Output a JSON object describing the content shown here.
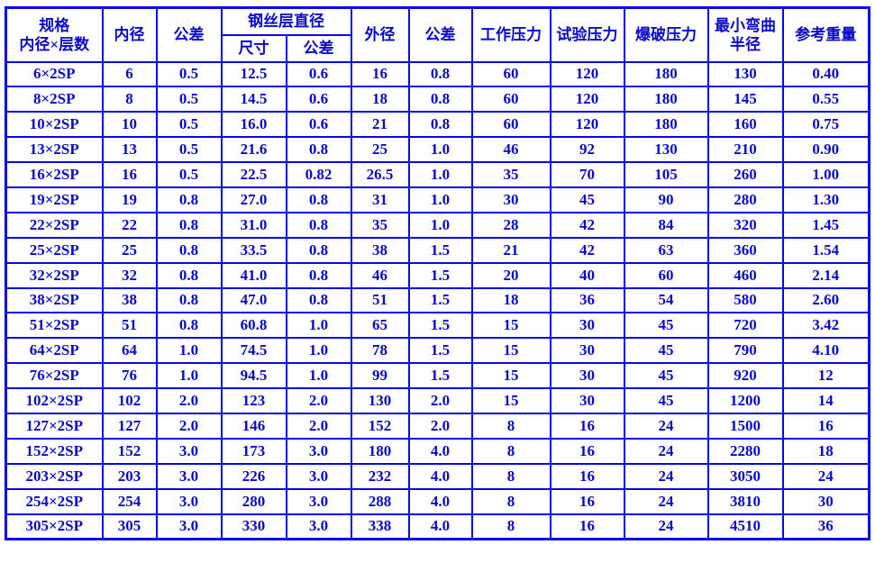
{
  "colors": {
    "text": "#0909cc",
    "border": "#0808ee",
    "background": "#ffffff"
  },
  "table": {
    "headers": {
      "spec_line1": "规格",
      "spec_line2": "内径×层数",
      "inner_diameter": "内径",
      "inner_tolerance": "公差",
      "wire_layer_diameter": "钢丝层直径",
      "wire_size": "尺寸",
      "wire_tolerance": "公差",
      "outer_diameter": "外径",
      "outer_tolerance": "公差",
      "working_pressure": "工作压力",
      "test_pressure": "试验压力",
      "burst_pressure": "爆破压力",
      "min_bend_line1": "最小弯曲",
      "min_bend_line2": "半径",
      "reference_weight": "参考重量"
    },
    "rows": [
      [
        "6×2SP",
        "6",
        "0.5",
        "12.5",
        "0.6",
        "16",
        "0.8",
        "60",
        "120",
        "180",
        "130",
        "0.40"
      ],
      [
        "8×2SP",
        "8",
        "0.5",
        "14.5",
        "0.6",
        "18",
        "0.8",
        "60",
        "120",
        "180",
        "145",
        "0.55"
      ],
      [
        "10×2SP",
        "10",
        "0.5",
        "16.0",
        "0.6",
        "21",
        "0.8",
        "60",
        "120",
        "180",
        "160",
        "0.75"
      ],
      [
        "13×2SP",
        "13",
        "0.5",
        "21.6",
        "0.8",
        "25",
        "1.0",
        "46",
        "92",
        "130",
        "210",
        "0.90"
      ],
      [
        "16×2SP",
        "16",
        "0.5",
        "22.5",
        "0.82",
        "26.5",
        "1.0",
        "35",
        "70",
        "105",
        "260",
        "1.00"
      ],
      [
        "19×2SP",
        "19",
        "0.8",
        "27.0",
        "0.8",
        "31",
        "1.0",
        "30",
        "45",
        "90",
        "280",
        "1.30"
      ],
      [
        "22×2SP",
        "22",
        "0.8",
        "31.0",
        "0.8",
        "35",
        "1.0",
        "28",
        "42",
        "84",
        "320",
        "1.45"
      ],
      [
        "25×2SP",
        "25",
        "0.8",
        "33.5",
        "0.8",
        "38",
        "1.5",
        "21",
        "42",
        "63",
        "360",
        "1.54"
      ],
      [
        "32×2SP",
        "32",
        "0.8",
        "41.0",
        "0.8",
        "46",
        "1.5",
        "20",
        "40",
        "60",
        "460",
        "2.14"
      ],
      [
        "38×2SP",
        "38",
        "0.8",
        "47.0",
        "0.8",
        "51",
        "1.5",
        "18",
        "36",
        "54",
        "580",
        "2.60"
      ],
      [
        "51×2SP",
        "51",
        "0.8",
        "60.8",
        "1.0",
        "65",
        "1.5",
        "15",
        "30",
        "45",
        "720",
        "3.42"
      ],
      [
        "64×2SP",
        "64",
        "1.0",
        "74.5",
        "1.0",
        "78",
        "1.5",
        "15",
        "30",
        "45",
        "790",
        "4.10"
      ],
      [
        "76×2SP",
        "76",
        "1.0",
        "94.5",
        "1.0",
        "99",
        "1.5",
        "15",
        "30",
        "45",
        "920",
        "12"
      ],
      [
        "102×2SP",
        "102",
        "2.0",
        "123",
        "2.0",
        "130",
        "2.0",
        "15",
        "30",
        "45",
        "1200",
        "14"
      ],
      [
        "127×2SP",
        "127",
        "2.0",
        "146",
        "2.0",
        "152",
        "2.0",
        "8",
        "16",
        "24",
        "1500",
        "16"
      ],
      [
        "152×2SP",
        "152",
        "3.0",
        "173",
        "3.0",
        "180",
        "4.0",
        "8",
        "16",
        "24",
        "2280",
        "18"
      ],
      [
        "203×2SP",
        "203",
        "3.0",
        "226",
        "3.0",
        "232",
        "4.0",
        "8",
        "16",
        "24",
        "3050",
        "24"
      ],
      [
        "254×2SP",
        "254",
        "3.0",
        "280",
        "3.0",
        "288",
        "4.0",
        "8",
        "16",
        "24",
        "3810",
        "30"
      ],
      [
        "305×2SP",
        "305",
        "3.0",
        "330",
        "3.0",
        "338",
        "4.0",
        "8",
        "16",
        "24",
        "4510",
        "36"
      ]
    ]
  }
}
